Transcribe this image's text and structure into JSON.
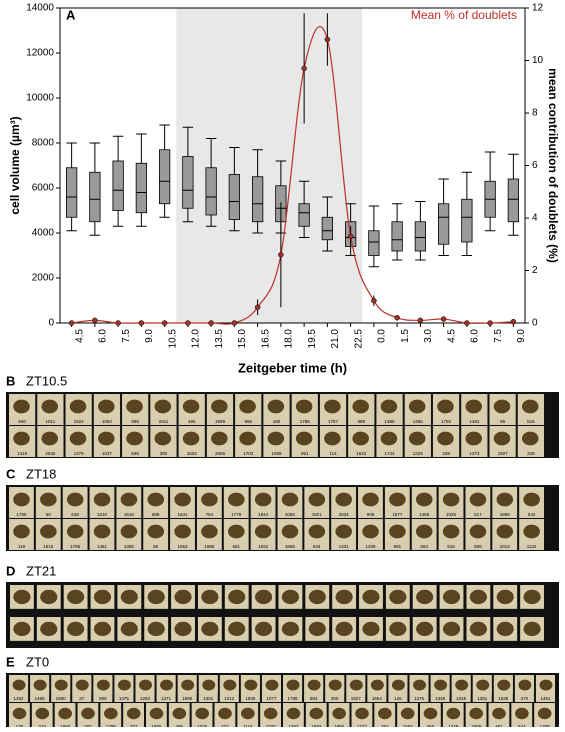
{
  "chart_data": {
    "type": "box",
    "panel_label": "A",
    "xlabel": "Zeitgeber time (h)",
    "ylabel": "cell volume (µm³)",
    "y2label": "mean contribution of doublets (%)",
    "categories": [
      "4.5",
      "6.0",
      "7.5",
      "9.0",
      "10.5",
      "12.0",
      "13.5",
      "15.0",
      "16.5",
      "18.0",
      "19.5",
      "21.0",
      "22.5",
      "0.0",
      "1.5",
      "3.0",
      "4.5",
      "6.0",
      "7.5",
      "9.0"
    ],
    "shaded_range": [
      "12.0",
      "22.5"
    ],
    "ylim": [
      0,
      14000
    ],
    "yticks": [
      0,
      2000,
      4000,
      6000,
      8000,
      10000,
      12000,
      14000
    ],
    "y2lim": [
      0,
      12
    ],
    "y2ticks": [
      0,
      2,
      4,
      6,
      8,
      10,
      12
    ],
    "box_color": "#9a9a9a",
    "whisker_low": [
      4100,
      3900,
      4300,
      4300,
      4700,
      4500,
      4300,
      4100,
      4000,
      4000,
      3800,
      3200,
      3000,
      2500,
      2800,
      2800,
      3000,
      3000,
      4100,
      3900
    ],
    "q1": [
      4700,
      4500,
      5000,
      4900,
      5300,
      5100,
      4800,
      4600,
      4500,
      4500,
      4300,
      3700,
      3400,
      3000,
      3200,
      3200,
      3500,
      3600,
      4700,
      4500
    ],
    "median": [
      5600,
      5500,
      5900,
      5800,
      6300,
      5900,
      5600,
      5400,
      5300,
      5100,
      4900,
      4100,
      3800,
      3600,
      3700,
      3800,
      4700,
      4700,
      5500,
      5500
    ],
    "q3": [
      6900,
      6700,
      7200,
      7100,
      7700,
      7400,
      6900,
      6600,
      6500,
      6100,
      5300,
      4700,
      4500,
      4100,
      4500,
      4500,
      5300,
      5500,
      6300,
      6400
    ],
    "whisker_high": [
      8000,
      8000,
      8300,
      8400,
      8800,
      8700,
      8200,
      7800,
      7700,
      7200,
      6300,
      5600,
      5300,
      5200,
      5300,
      5400,
      6400,
      6700,
      7600,
      7500
    ],
    "doublets": {
      "name": "Mean % of doublets",
      "color": "#c0302a",
      "axis": "y2",
      "values": [
        0,
        0.1,
        0,
        0,
        0,
        0,
        0,
        0,
        0.6,
        2.6,
        9.7,
        10.8,
        3.3,
        0.85,
        0.2,
        0.1,
        0.15,
        0,
        0,
        0.05
      ],
      "errors": [
        0,
        0,
        0,
        0,
        0,
        0,
        0,
        0,
        0.3,
        2.0,
        2.1,
        1.0,
        0.4,
        0.2,
        0,
        0,
        0,
        0,
        0,
        0
      ]
    }
  },
  "panels": [
    {
      "label": "B",
      "title": "ZT10.5",
      "rows": [
        [
          "940",
          "1011",
          "1924",
          "1062",
          "898",
          "2011",
          "486",
          "1999",
          "966",
          "180",
          "1766",
          "1787",
          "989",
          "1385",
          "1466",
          "1782",
          "1481",
          "95",
          "515"
        ],
        [
          "1419",
          "2042",
          "1379",
          "1037",
          "645",
          "392",
          "1634",
          "2066",
          "1703",
          "1059",
          "961",
          "114",
          "1642",
          "1742",
          "1325",
          "339",
          "1373",
          "1607",
          "328"
        ]
      ]
    },
    {
      "label": "C",
      "title": "ZT18",
      "rows": [
        [
          "1789",
          "50",
          "648",
          "1210",
          "1616",
          "689",
          "1631",
          "754",
          "1778",
          "1844",
          "2066",
          "1821",
          "2034",
          "906",
          "1577",
          "1469",
          "1025",
          "517",
          "1869",
          "542"
        ],
        [
          "119",
          "1615",
          "1795",
          "1451",
          "1365",
          "86",
          "1553",
          "1986",
          "681",
          "1922",
          "1666",
          "844",
          "1331",
          "1339",
          "891",
          "553",
          "516",
          "865",
          "2013",
          "1132"
        ]
      ]
    },
    {
      "label": "D",
      "title": "ZT21",
      "rows": [
        [],
        []
      ]
    },
    {
      "label": "E",
      "title": "ZT0",
      "rows": [
        [
          "1482",
          "1465",
          "1590",
          "37",
          "905",
          "1475",
          "1293",
          "1371",
          "1998",
          "1301",
          "1212",
          "1835",
          "1077",
          "1798",
          "594",
          "300",
          "1927",
          "1654",
          "126",
          "1375",
          "1346",
          "1048",
          "1391",
          "1635",
          "270",
          "1481"
        ],
        [
          "135",
          "234",
          "1856",
          "287",
          "1798",
          "707",
          "1895",
          "496",
          "1025",
          "227",
          "1116",
          "1020",
          "1797",
          "1693",
          "1856",
          "1722",
          "753",
          "1553",
          "465",
          "1349",
          "1509",
          "481",
          "544",
          "1359"
        ]
      ]
    }
  ]
}
